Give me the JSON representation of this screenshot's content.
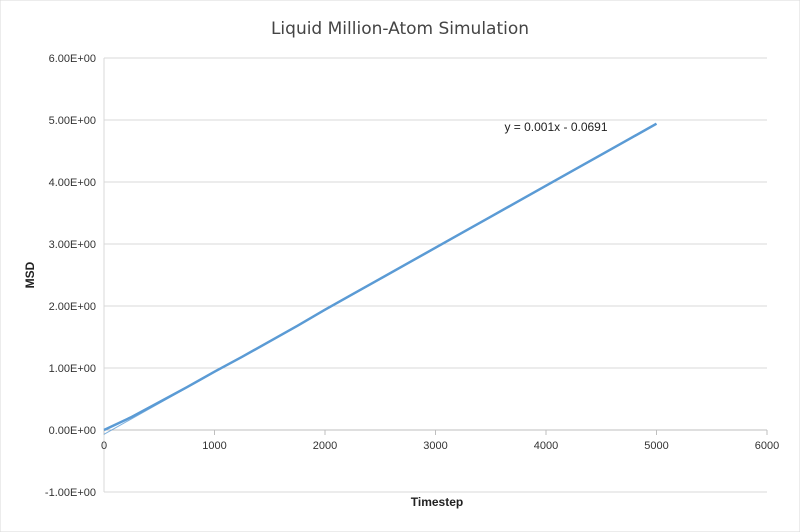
{
  "chart_data": {
    "type": "line",
    "title": "Liquid Million-Atom Simulation",
    "xlabel": "Timestep",
    "ylabel": "MSD",
    "xlim": [
      0,
      6000
    ],
    "ylim": [
      -1.0,
      6.0
    ],
    "x_ticks": [
      "0",
      "1000",
      "2000",
      "3000",
      "4000",
      "5000",
      "6000"
    ],
    "y_ticks": [
      "-1.00E+00",
      "0.00E+00",
      "1.00E+00",
      "2.00E+00",
      "3.00E+00",
      "4.00E+00",
      "5.00E+00",
      "6.00E+00"
    ],
    "grid": "horizontal",
    "legend": "none",
    "series": [
      {
        "x": [
          0,
          250,
          500,
          750,
          1000,
          1250,
          1500,
          1750,
          2000,
          2250,
          2500,
          2750,
          3000,
          3250,
          3500,
          3750,
          4000,
          4250,
          4500,
          4750,
          5000
        ],
        "values": [
          0.0,
          0.21,
          0.45,
          0.69,
          0.94,
          1.18,
          1.43,
          1.68,
          1.94,
          2.19,
          2.44,
          2.69,
          2.94,
          3.19,
          3.44,
          3.69,
          3.94,
          4.19,
          4.44,
          4.69,
          4.94
        ],
        "color": "#5b9bd5"
      }
    ],
    "trendline": {
      "equation": "y = 0.001x - 0.0691",
      "slope": 0.001,
      "intercept": -0.0691,
      "x_range": [
        0,
        5000
      ],
      "color": "#5b9bd5"
    },
    "colors": {
      "gridline": "#d9d9d9",
      "axis": "#bfbfbf",
      "series": "#5b9bd5"
    }
  }
}
